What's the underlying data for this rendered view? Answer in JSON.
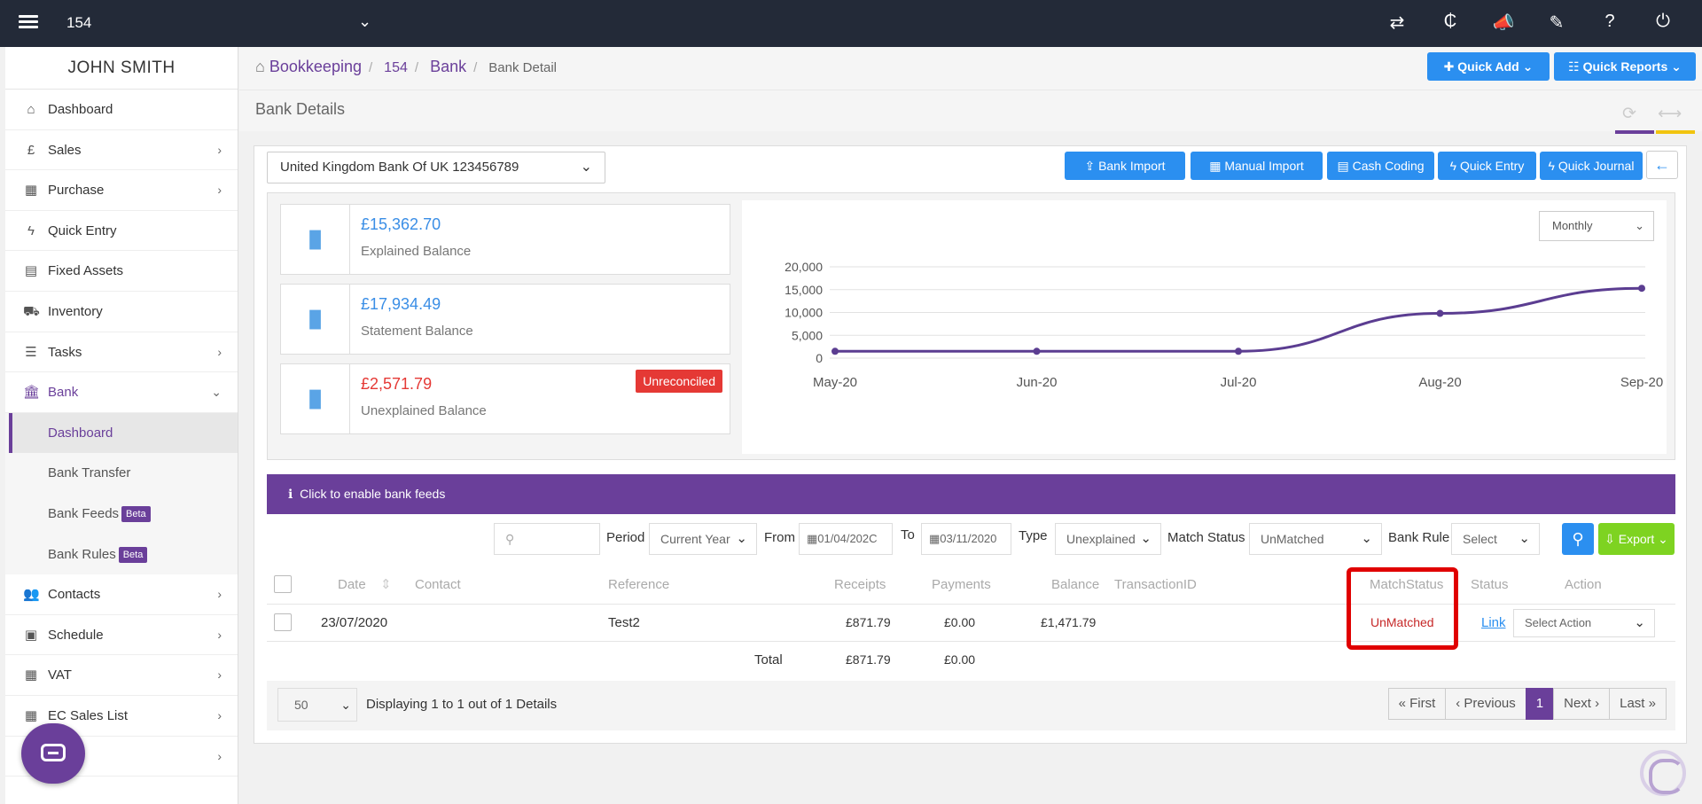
{
  "topbar": {
    "company": "154",
    "icons": [
      "exchange-icon",
      "currency-icon",
      "bullhorn-icon",
      "ticket-icon",
      "help-icon",
      "power-icon"
    ],
    "icon_glyphs": [
      "⇄",
      "₵",
      "📣",
      "✎",
      "?",
      "⏻"
    ]
  },
  "sidebar": {
    "user": "JOHN SMITH",
    "items": [
      {
        "label": "Dashboard",
        "glyph": "⌂"
      },
      {
        "label": "Sales",
        "glyph": "£"
      },
      {
        "label": "Purchase",
        "glyph": "▦"
      },
      {
        "label": "Quick Entry",
        "glyph": "ϟ"
      },
      {
        "label": "Fixed Assets",
        "glyph": "▤"
      },
      {
        "label": "Inventory",
        "glyph": "⛟"
      },
      {
        "label": "Tasks",
        "glyph": "☰"
      },
      {
        "label": "Bank",
        "glyph": "🏛"
      }
    ],
    "bank_sub": [
      {
        "label": "Dashboard"
      },
      {
        "label": "Bank Transfer"
      },
      {
        "label": "Bank Feeds",
        "badge": "Beta"
      },
      {
        "label": "Bank Rules",
        "badge": "Beta"
      }
    ],
    "items_after": [
      {
        "label": "Contacts",
        "glyph": "👥"
      },
      {
        "label": "Schedule",
        "glyph": "▣"
      },
      {
        "label": "VAT",
        "glyph": "▦"
      },
      {
        "label": "EC Sales List",
        "glyph": "▦"
      }
    ]
  },
  "breadcrumb": {
    "home": "Bookkeeping",
    "company": "154",
    "section": "Bank",
    "current": "Bank Detail"
  },
  "header_buttons": {
    "quick_add": "Quick Add",
    "quick_reports": "Quick Reports"
  },
  "page_title": "Bank Details",
  "bank_account": "United Kingdom Bank Of UK 123456789",
  "toolbar": {
    "bank_import": "Bank Import",
    "manual_import": "Manual Import",
    "cash_coding": "Cash Coding",
    "quick_entry": "Quick Entry",
    "quick_journal": "Quick Journal"
  },
  "cards": [
    {
      "amount": "£15,362.70",
      "label": "Explained Balance",
      "color": "#3a8ee6"
    },
    {
      "amount": "£17,934.49",
      "label": "Statement Balance",
      "color": "#3a8ee6"
    },
    {
      "amount": "£2,571.79",
      "label": "Unexplained Balance",
      "color": "#e53935",
      "badge": "Unreconciled"
    }
  ],
  "period_select": "Monthly",
  "chart_data": {
    "type": "line",
    "categories": [
      "May-20",
      "Jun-20",
      "Jul-20",
      "Aug-20",
      "Sep-20"
    ],
    "series": [
      {
        "values": [
          1500,
          1500,
          1500,
          9800,
          15300
        ]
      }
    ],
    "y_ticks": [
      "20,000",
      "15,000",
      "10,000",
      "5,000",
      "0"
    ],
    "ylim": [
      0,
      20000
    ],
    "grid": true,
    "color": "#5b3d91"
  },
  "bank_feeds_text": "Click to enable bank feeds",
  "filters": {
    "search_placeholder": "",
    "period_label": "Period",
    "period_value": "Current Year",
    "from_label": "From",
    "from_value": "01/04/202C",
    "to_label": "To",
    "to_value": "03/11/2020",
    "type_label": "Type",
    "type_value": "Unexplained",
    "match_label": "Match Status",
    "match_value": "UnMatched",
    "rule_label": "Bank Rule",
    "rule_value": "Select",
    "export": "Export"
  },
  "table": {
    "headers": [
      "Date",
      "Contact",
      "Reference",
      "Receipts",
      "Payments",
      "Balance",
      "TransactionID",
      "MatchStatus",
      "Status",
      "Action"
    ],
    "rows": [
      {
        "date": "23/07/2020",
        "contact": "",
        "reference": "Test2",
        "receipts": "£871.79",
        "payments": "£0.00",
        "balance": "£1,471.79",
        "transaction_id": "",
        "match_status": "UnMatched",
        "status": "Link",
        "action": "Select Action"
      }
    ],
    "total_label": "Total",
    "total_receipts": "£871.79",
    "total_payments": "£0.00"
  },
  "pager": {
    "page_size": "50",
    "info": "Displaying 1 to 1 out of 1 Details",
    "first": "« First",
    "previous": "‹ Previous",
    "current": "1",
    "next": "Next ›",
    "last": "Last »"
  }
}
